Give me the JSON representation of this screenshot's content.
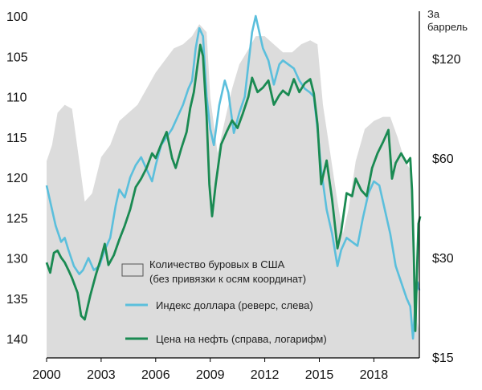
{
  "chart_data": {
    "type": "line",
    "title": "",
    "x_ticks": [
      "2000",
      "2003",
      "2006",
      "2009",
      "2012",
      "2015",
      "2018"
    ],
    "x_range": [
      2000,
      2020.5
    ],
    "left_axis": {
      "reversed": true,
      "range": [
        100,
        142
      ],
      "ticks": [
        "100",
        "105",
        "110",
        "115",
        "120",
        "125",
        "130",
        "135",
        "140"
      ],
      "tick_values": [
        100,
        105,
        110,
        115,
        120,
        125,
        130,
        135,
        140
      ]
    },
    "right_axis": {
      "label_line1": "За",
      "label_line2": "баррель",
      "scale": "log",
      "ticks": [
        "$120",
        "$60",
        "$30",
        "$15"
      ],
      "tick_values": [
        120,
        60,
        30,
        15
      ]
    },
    "legend": {
      "placement": "bottom-center",
      "rigs_line1": "Количество буровых в США",
      "rigs_line2": "(без привязки к осям координат)",
      "dollar": "Индекс доллара (реверс, слева)",
      "oil": "Цена на нефть (справа, логарифм)"
    },
    "colors": {
      "rigs": "#dcdcdc",
      "dollar": "#5bbfdc",
      "oil": "#1a8a52"
    },
    "series": [
      {
        "name": "Количество буровых в США",
        "axis": "none",
        "points": [
          [
            2000,
            118
          ],
          [
            2000.3,
            116
          ],
          [
            2000.6,
            112
          ],
          [
            2001,
            111
          ],
          [
            2001.4,
            111.5
          ],
          [
            2001.8,
            118
          ],
          [
            2002.1,
            123
          ],
          [
            2002.5,
            122
          ],
          [
            2003,
            117.5
          ],
          [
            2003.5,
            116
          ],
          [
            2004,
            113
          ],
          [
            2004.5,
            112
          ],
          [
            2005,
            111
          ],
          [
            2005.5,
            109
          ],
          [
            2006,
            107
          ],
          [
            2006.5,
            105.5
          ],
          [
            2007,
            104
          ],
          [
            2007.5,
            103.5
          ],
          [
            2008,
            102.5
          ],
          [
            2008.4,
            101
          ],
          [
            2008.8,
            102
          ],
          [
            2009,
            110
          ],
          [
            2009.4,
            117
          ],
          [
            2009.8,
            113
          ],
          [
            2010.2,
            109
          ],
          [
            2010.6,
            106
          ],
          [
            2011,
            104.5
          ],
          [
            2011.5,
            102.5
          ],
          [
            2012,
            102.5
          ],
          [
            2012.5,
            103.5
          ],
          [
            2013,
            104.5
          ],
          [
            2013.5,
            104.5
          ],
          [
            2014,
            103.5
          ],
          [
            2014.5,
            103
          ],
          [
            2014.9,
            103.5
          ],
          [
            2015.2,
            111
          ],
          [
            2015.6,
            117
          ],
          [
            2016,
            123
          ],
          [
            2016.3,
            127
          ],
          [
            2016.6,
            124
          ],
          [
            2017,
            118
          ],
          [
            2017.5,
            114
          ],
          [
            2018,
            113
          ],
          [
            2018.5,
            112.5
          ],
          [
            2018.9,
            112.5
          ],
          [
            2019.3,
            115
          ],
          [
            2019.7,
            118
          ],
          [
            2020,
            119
          ],
          [
            2020.2,
            128
          ],
          [
            2020.4,
            138
          ],
          [
            2020.5,
            139
          ]
        ]
      },
      {
        "name": "Индекс доллара (реверс, слева)",
        "axis": "left",
        "points": [
          [
            2000,
            121
          ],
          [
            2000.2,
            123
          ],
          [
            2000.5,
            126
          ],
          [
            2000.8,
            128
          ],
          [
            2001,
            127.5
          ],
          [
            2001.2,
            129
          ],
          [
            2001.5,
            131
          ],
          [
            2001.8,
            132
          ],
          [
            2002,
            131.5
          ],
          [
            2002.3,
            130
          ],
          [
            2002.6,
            131.5
          ],
          [
            2002.9,
            131
          ],
          [
            2003.2,
            129
          ],
          [
            2003.5,
            127.5
          ],
          [
            2003.8,
            123.5
          ],
          [
            2004,
            121.5
          ],
          [
            2004.3,
            122.5
          ],
          [
            2004.6,
            120
          ],
          [
            2004.9,
            118.5
          ],
          [
            2005.2,
            117.5
          ],
          [
            2005.5,
            119
          ],
          [
            2005.8,
            120.5
          ],
          [
            2006,
            118.5
          ],
          [
            2006.3,
            116
          ],
          [
            2006.6,
            115
          ],
          [
            2006.9,
            114
          ],
          [
            2007.2,
            112.5
          ],
          [
            2007.5,
            111
          ],
          [
            2007.8,
            109
          ],
          [
            2008,
            108
          ],
          [
            2008.2,
            104
          ],
          [
            2008.4,
            101.5
          ],
          [
            2008.6,
            102.5
          ],
          [
            2008.8,
            110
          ],
          [
            2009,
            114
          ],
          [
            2009.2,
            116
          ],
          [
            2009.5,
            111
          ],
          [
            2009.8,
            108
          ],
          [
            2010,
            109.5
          ],
          [
            2010.3,
            114.5
          ],
          [
            2010.6,
            112
          ],
          [
            2010.9,
            110
          ],
          [
            2011.1,
            106
          ],
          [
            2011.3,
            102
          ],
          [
            2011.5,
            100
          ],
          [
            2011.7,
            102
          ],
          [
            2011.9,
            104
          ],
          [
            2012.2,
            105.5
          ],
          [
            2012.5,
            108.5
          ],
          [
            2012.8,
            106
          ],
          [
            2013,
            105.5
          ],
          [
            2013.3,
            106
          ],
          [
            2013.6,
            106.5
          ],
          [
            2013.9,
            108
          ],
          [
            2014.2,
            109
          ],
          [
            2014.5,
            109.5
          ],
          [
            2014.7,
            110
          ],
          [
            2014.9,
            114
          ],
          [
            2015.1,
            119
          ],
          [
            2015.4,
            124
          ],
          [
            2015.7,
            127
          ],
          [
            2016,
            131
          ],
          [
            2016.2,
            129
          ],
          [
            2016.5,
            127.5
          ],
          [
            2016.8,
            128
          ],
          [
            2017.1,
            128.5
          ],
          [
            2017.4,
            125
          ],
          [
            2017.7,
            122
          ],
          [
            2018,
            120.5
          ],
          [
            2018.3,
            121
          ],
          [
            2018.6,
            124
          ],
          [
            2018.9,
            127
          ],
          [
            2019.2,
            131
          ],
          [
            2019.5,
            133
          ],
          [
            2019.8,
            135
          ],
          [
            2020,
            136
          ],
          [
            2020.15,
            140
          ],
          [
            2020.3,
            135
          ],
          [
            2020.4,
            133
          ],
          [
            2020.5,
            134
          ]
        ]
      },
      {
        "name": "Цена на нефть (справа, логарифм)",
        "axis": "right",
        "points": [
          [
            2000,
            29
          ],
          [
            2000.2,
            27
          ],
          [
            2000.4,
            31
          ],
          [
            2000.6,
            31.5
          ],
          [
            2000.8,
            30
          ],
          [
            2001,
            29
          ],
          [
            2001.2,
            27.5
          ],
          [
            2001.4,
            26
          ],
          [
            2001.7,
            23.5
          ],
          [
            2001.9,
            20
          ],
          [
            2002.1,
            19.5
          ],
          [
            2002.4,
            23
          ],
          [
            2002.7,
            26.5
          ],
          [
            2003,
            30
          ],
          [
            2003.2,
            33
          ],
          [
            2003.4,
            28.5
          ],
          [
            2003.7,
            30.5
          ],
          [
            2004,
            34
          ],
          [
            2004.3,
            37.5
          ],
          [
            2004.6,
            42
          ],
          [
            2004.9,
            49
          ],
          [
            2005.2,
            52
          ],
          [
            2005.5,
            56
          ],
          [
            2005.8,
            62
          ],
          [
            2006,
            60
          ],
          [
            2006.3,
            66
          ],
          [
            2006.6,
            72
          ],
          [
            2006.9,
            60
          ],
          [
            2007.1,
            56
          ],
          [
            2007.4,
            64
          ],
          [
            2007.7,
            72
          ],
          [
            2007.9,
            85
          ],
          [
            2008.1,
            95
          ],
          [
            2008.3,
            115
          ],
          [
            2008.45,
            132
          ],
          [
            2008.6,
            122
          ],
          [
            2008.8,
            80
          ],
          [
            2008.95,
            50
          ],
          [
            2009.1,
            40
          ],
          [
            2009.3,
            50
          ],
          [
            2009.6,
            66
          ],
          [
            2009.9,
            72
          ],
          [
            2010.2,
            78
          ],
          [
            2010.5,
            74
          ],
          [
            2010.8,
            82
          ],
          [
            2011.1,
            92
          ],
          [
            2011.3,
            105
          ],
          [
            2011.6,
            95
          ],
          [
            2011.9,
            98
          ],
          [
            2012.2,
            103
          ],
          [
            2012.5,
            87
          ],
          [
            2012.8,
            93
          ],
          [
            2013,
            96
          ],
          [
            2013.3,
            93
          ],
          [
            2013.6,
            104
          ],
          [
            2013.9,
            95
          ],
          [
            2014.2,
            101
          ],
          [
            2014.5,
            104
          ],
          [
            2014.7,
            94
          ],
          [
            2014.9,
            76
          ],
          [
            2015.1,
            50
          ],
          [
            2015.4,
            59
          ],
          [
            2015.7,
            45
          ],
          [
            2016,
            32
          ],
          [
            2016.2,
            36
          ],
          [
            2016.5,
            47
          ],
          [
            2016.8,
            46
          ],
          [
            2017,
            52
          ],
          [
            2017.3,
            48
          ],
          [
            2017.6,
            46
          ],
          [
            2017.9,
            56
          ],
          [
            2018.2,
            62
          ],
          [
            2018.5,
            67
          ],
          [
            2018.8,
            73
          ],
          [
            2019,
            52
          ],
          [
            2019.2,
            58
          ],
          [
            2019.5,
            62
          ],
          [
            2019.8,
            58
          ],
          [
            2020,
            60
          ],
          [
            2020.1,
            48
          ],
          [
            2020.2,
            30
          ],
          [
            2020.28,
            18
          ],
          [
            2020.35,
            25
          ],
          [
            2020.45,
            38
          ],
          [
            2020.55,
            40
          ]
        ]
      }
    ]
  }
}
